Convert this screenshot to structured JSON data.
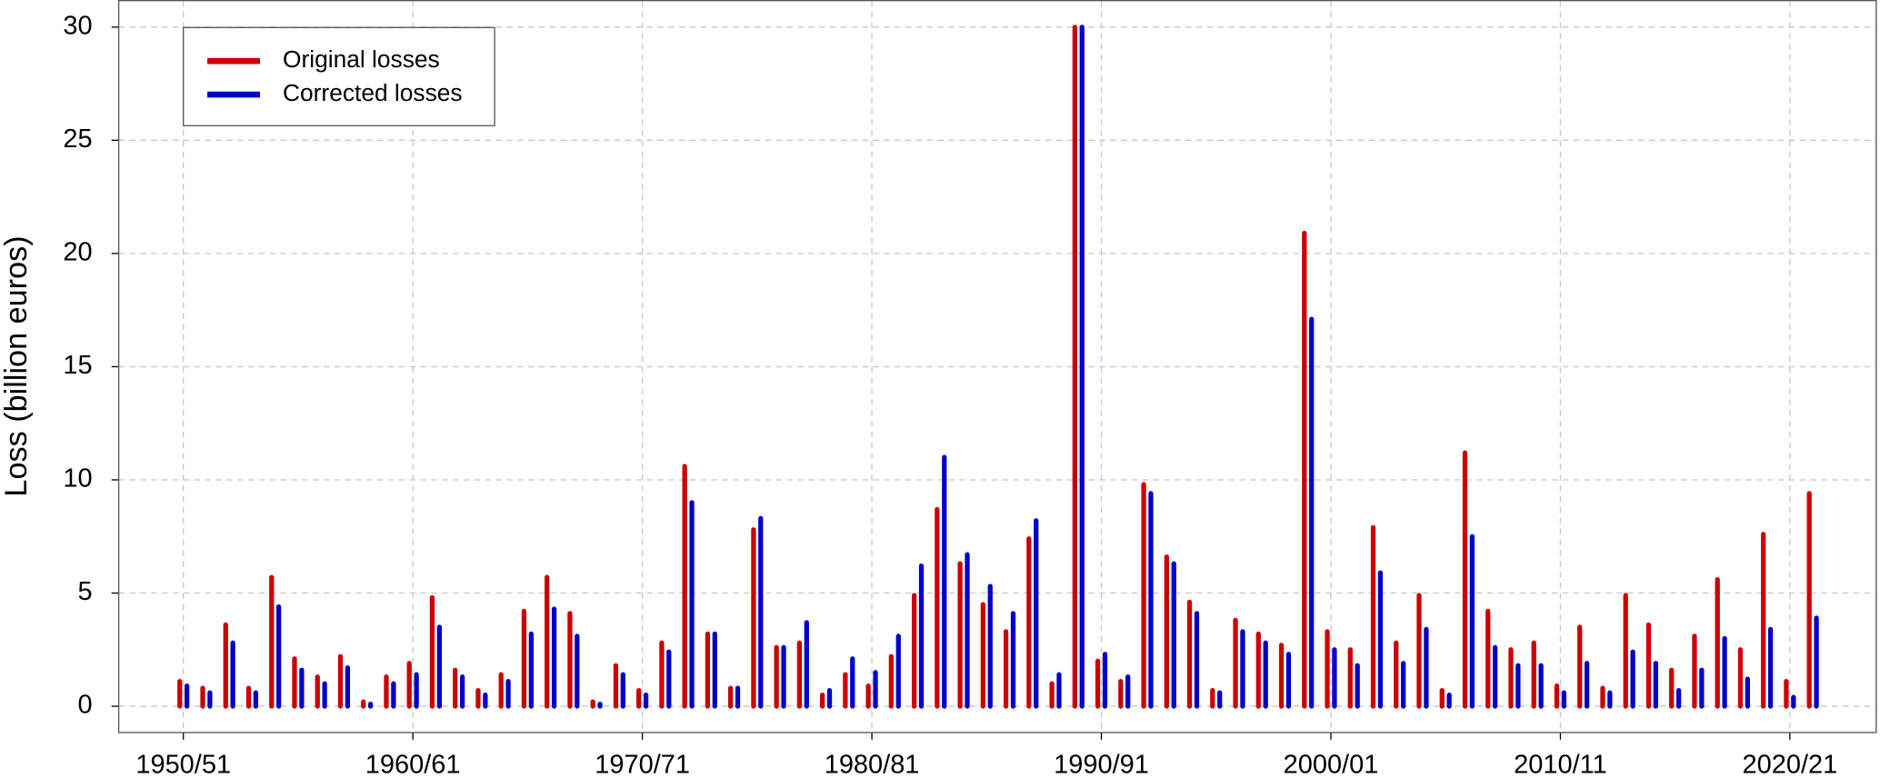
{
  "chart_data": {
    "type": "bar",
    "y_label": "Loss (billion euros)",
    "categories": [
      "1950/51",
      null,
      null,
      null,
      null,
      null,
      null,
      null,
      null,
      null,
      "1960/61",
      null,
      null,
      null,
      null,
      null,
      null,
      null,
      null,
      null,
      "1970/71",
      null,
      null,
      null,
      null,
      null,
      null,
      null,
      null,
      null,
      "1980/81",
      null,
      null,
      null,
      null,
      null,
      null,
      null,
      null,
      null,
      "1990/91",
      null,
      null,
      null,
      null,
      null,
      null,
      null,
      null,
      null,
      "2000/01",
      null,
      null,
      null,
      null,
      null,
      null,
      null,
      null,
      null,
      "2010/11",
      null,
      null,
      null,
      null,
      null,
      null,
      null,
      null,
      null,
      "2020/21",
      null
    ],
    "series": [
      {
        "name": "Original losses",
        "color": "#cc0000",
        "values": [
          1.1,
          0.8,
          3.6,
          0.8,
          5.7,
          2.1,
          1.3,
          2.2,
          0.2,
          1.3,
          1.9,
          4.8,
          1.6,
          0.7,
          1.4,
          4.2,
          5.7,
          4.1,
          0.2,
          1.8,
          0.7,
          2.8,
          10.6,
          3.2,
          0.8,
          7.8,
          2.6,
          2.8,
          0.5,
          1.4,
          0.9,
          2.2,
          4.9,
          8.7,
          6.3,
          4.5,
          3.3,
          7.4,
          1.0,
          30.0,
          2.0,
          1.1,
          9.8,
          6.6,
          4.6,
          0.7,
          3.8,
          3.2,
          2.7,
          20.9,
          3.3,
          2.5,
          7.9,
          2.8,
          4.9,
          0.7,
          11.2,
          4.2,
          2.5,
          2.8,
          0.9,
          3.5,
          0.8,
          4.9,
          3.6,
          1.6,
          3.1,
          5.6,
          2.5,
          7.6,
          1.1,
          9.4
        ]
      },
      {
        "name": "Corrected losses",
        "color": "#0000cc",
        "values": [
          0.9,
          0.6,
          2.8,
          0.6,
          4.4,
          1.6,
          1.0,
          1.7,
          0.1,
          1.0,
          1.4,
          3.5,
          1.3,
          0.5,
          1.1,
          3.2,
          4.3,
          3.1,
          0.1,
          1.4,
          0.5,
          2.4,
          9.0,
          3.2,
          0.8,
          8.3,
          2.6,
          3.7,
          0.7,
          2.1,
          1.5,
          3.1,
          6.2,
          11.0,
          6.7,
          5.3,
          4.1,
          8.2,
          1.4,
          30.0,
          2.3,
          1.3,
          9.4,
          6.3,
          4.1,
          0.6,
          3.3,
          2.8,
          2.3,
          17.1,
          2.5,
          1.8,
          5.9,
          1.9,
          3.4,
          0.5,
          7.5,
          2.6,
          1.8,
          1.8,
          0.6,
          1.9,
          0.6,
          2.4,
          1.9,
          0.7,
          1.6,
          3.0,
          1.2,
          3.4,
          0.4,
          3.9
        ]
      }
    ],
    "ylim": [
      -1.16,
      31.17
    ],
    "yticks": [
      0,
      5,
      10,
      15,
      20,
      25,
      30
    ],
    "grid": true,
    "legend": "top-left"
  }
}
